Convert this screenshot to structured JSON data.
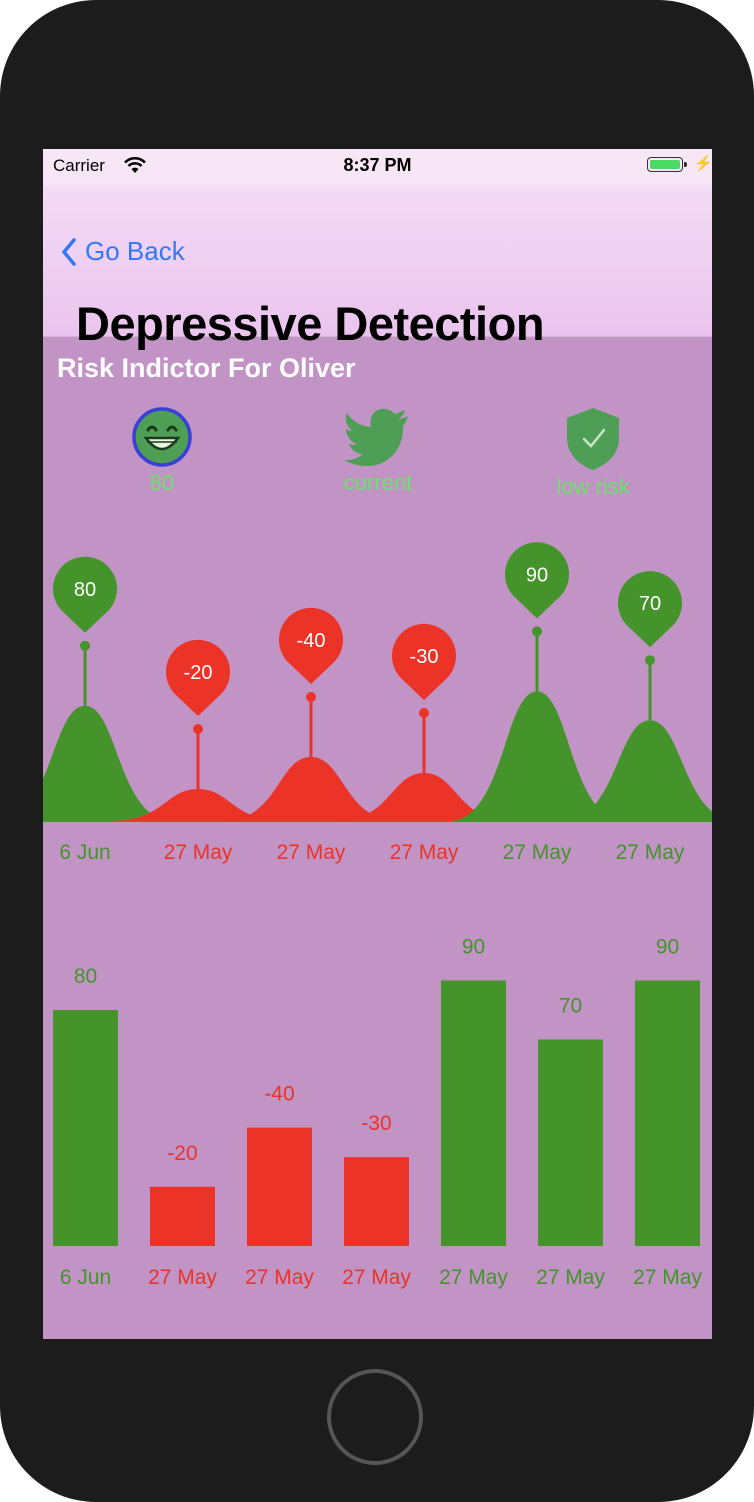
{
  "status_bar": {
    "carrier": "Carrier",
    "time": "8:37 PM"
  },
  "nav": {
    "back_label": "Go Back",
    "title": "Depressive Detection"
  },
  "subtitle": "Risk Indictor For Oliver",
  "indicators": [
    {
      "icon": "smiley-face-icon",
      "label": "80"
    },
    {
      "icon": "twitter-bird-icon",
      "label": "current"
    },
    {
      "icon": "shield-check-icon",
      "label": "low risk"
    }
  ],
  "colors": {
    "positive": "#44942b",
    "negative": "#ec3327",
    "background": "#c194c5",
    "accent": "#3478f6"
  },
  "chart_data": [
    {
      "type": "area",
      "categories": [
        "6 Jun",
        "27 May",
        "27 May",
        "27 May",
        "27 May",
        "27 May"
      ],
      "values": [
        80,
        -20,
        -40,
        -30,
        90,
        70
      ]
    },
    {
      "type": "bar",
      "categories": [
        "6 Jun",
        "27 May",
        "27 May",
        "27 May",
        "27 May",
        "27 May",
        "27 May"
      ],
      "values": [
        80,
        -20,
        -40,
        -30,
        90,
        70,
        90
      ]
    }
  ]
}
